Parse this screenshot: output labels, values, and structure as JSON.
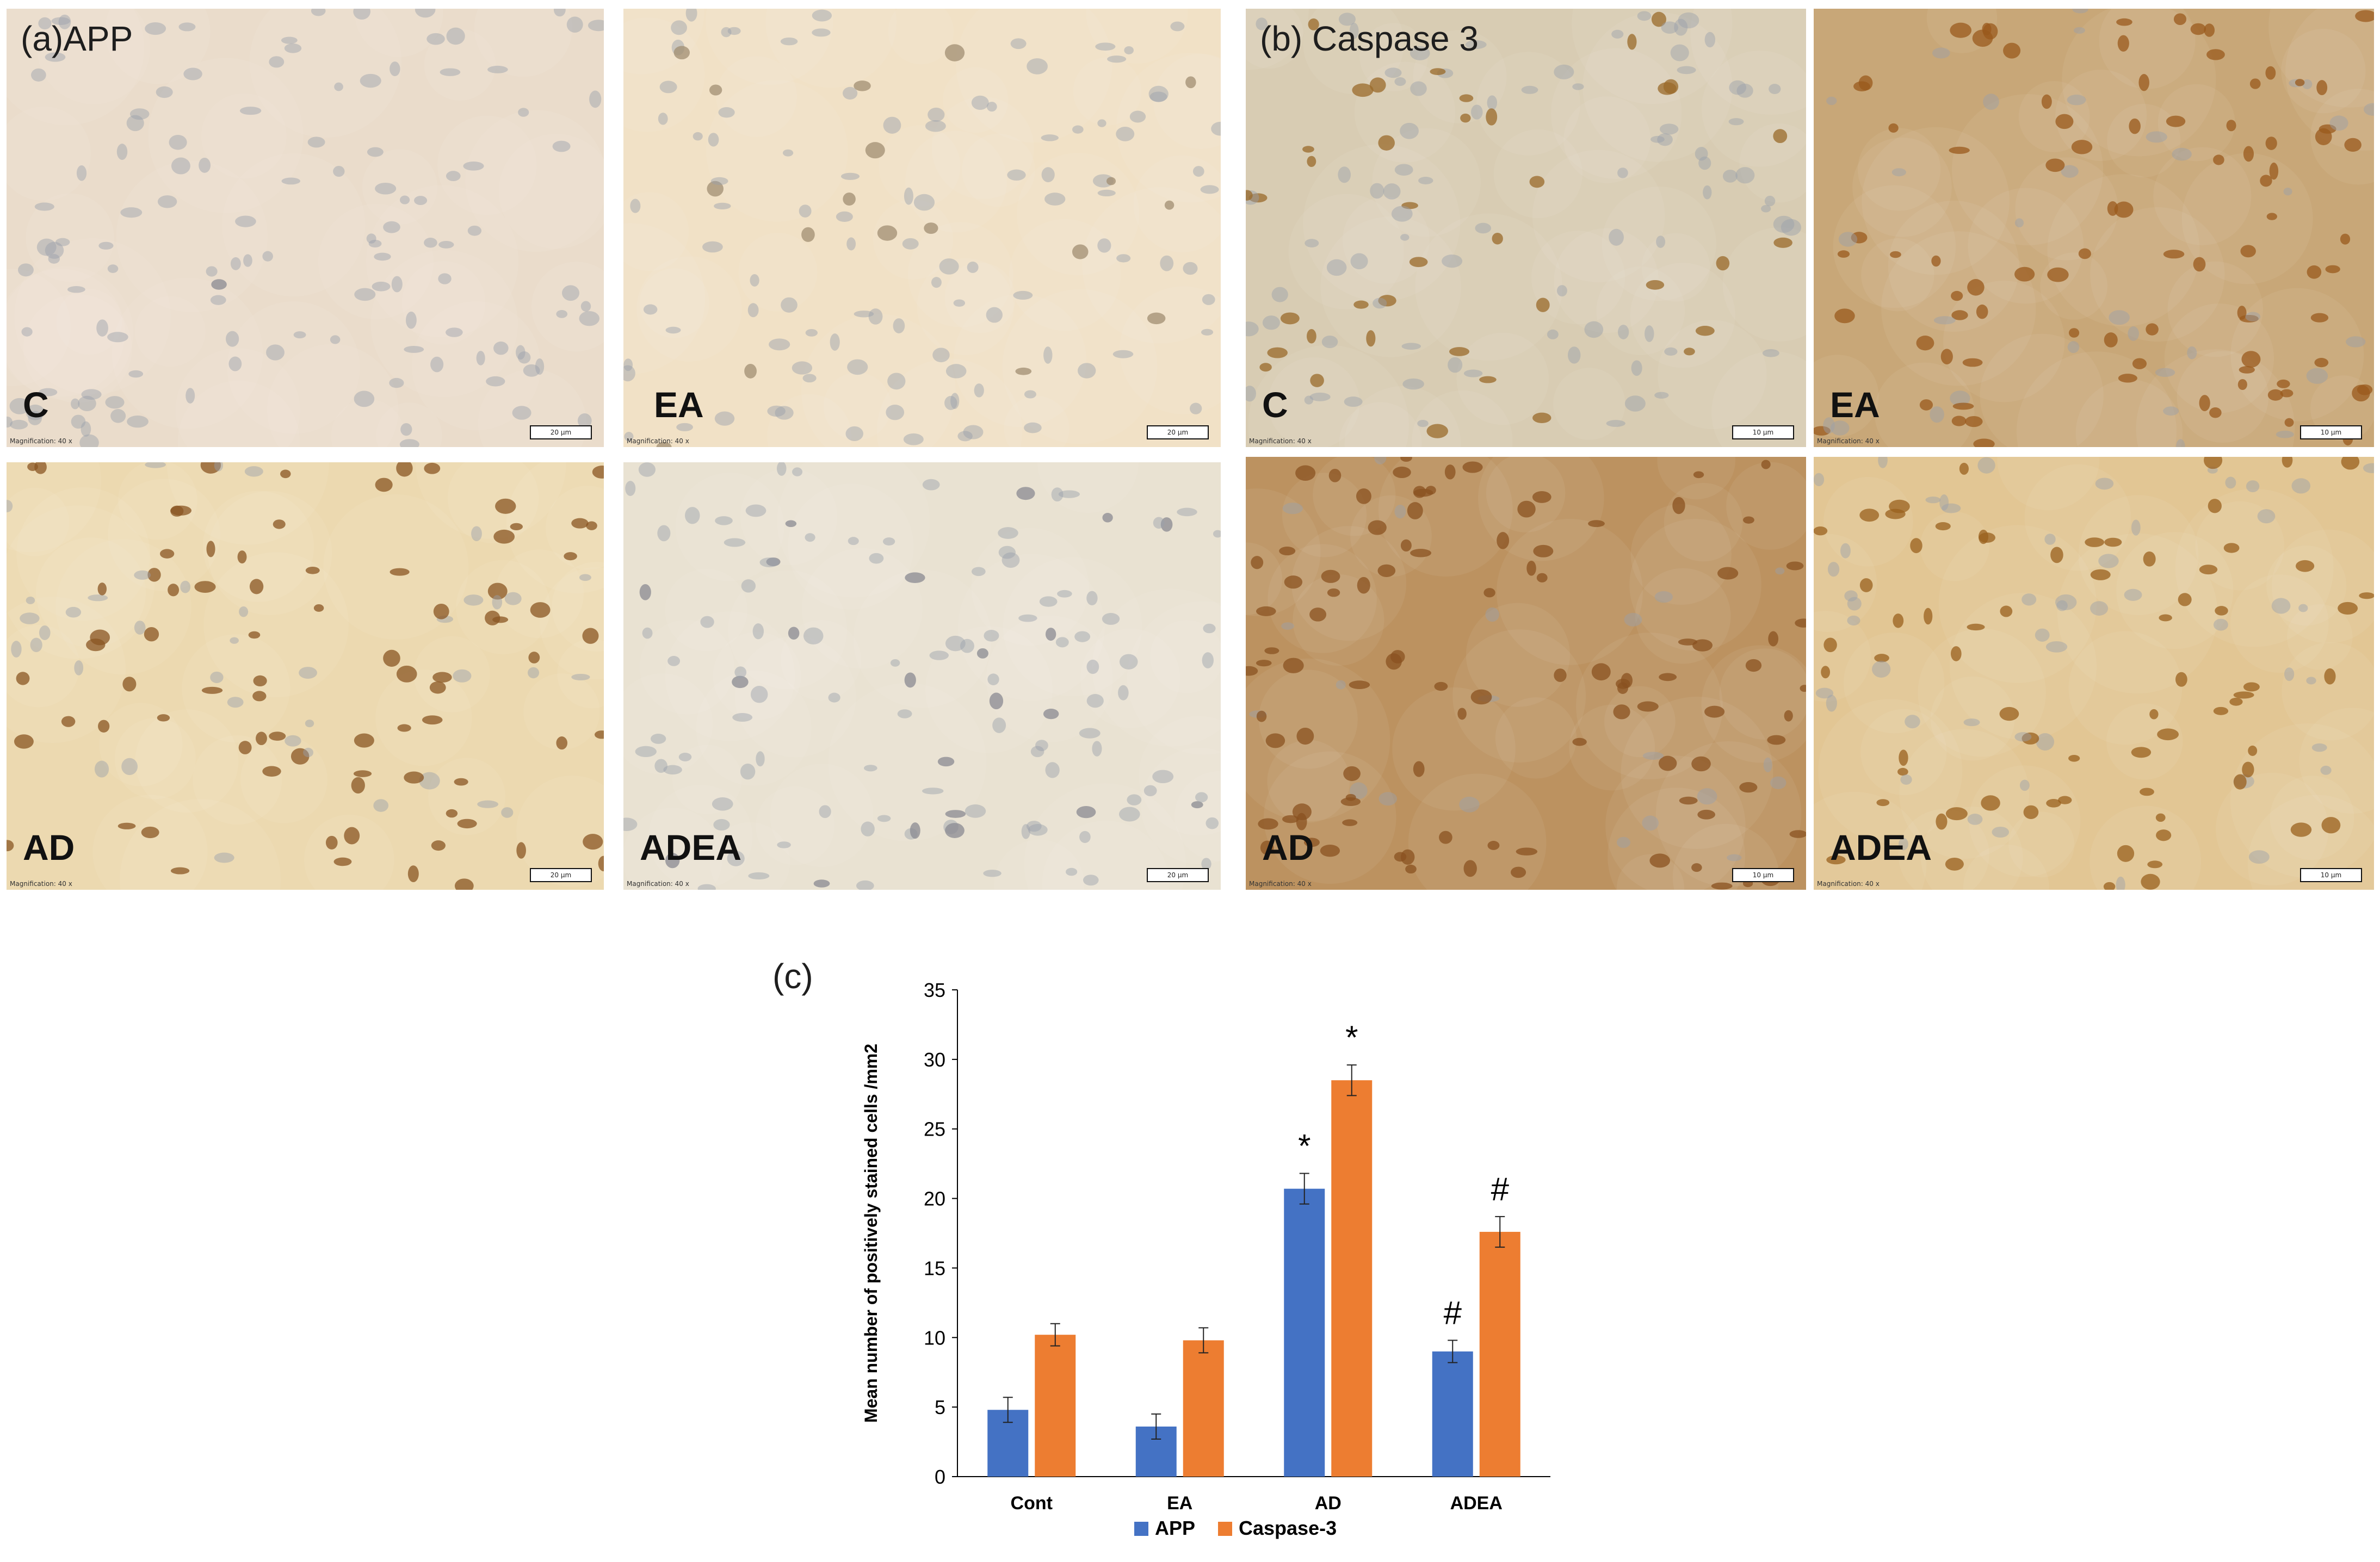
{
  "micrographs": {
    "app": {
      "group_label": "(a)APP",
      "scale_text": "20 μm",
      "magnification_text": "Magnification: 40 x",
      "panels": [
        {
          "label": "C",
          "bg": "#eadccb",
          "stain": "#8a8a92",
          "brown": 0.05
        },
        {
          "label": "EA",
          "bg": "#f1e1c6",
          "stain": "#a08d72",
          "brown": 0.15
        },
        {
          "label": "AD",
          "bg": "#ecd9b0",
          "stain": "#8a5523",
          "brown": 0.6
        },
        {
          "label": "ADEA",
          "bg": "#e9e2d2",
          "stain": "#8a8a92",
          "brown": 0.25
        }
      ]
    },
    "caspase": {
      "group_label": "(b) Caspase 3",
      "scale_text": "10 μm",
      "magnification_text": "Magnification: 40 x",
      "panels": [
        {
          "label": "C",
          "bg": "#d8ccb3",
          "stain": "#9a6a2a",
          "brown": 0.35
        },
        {
          "label": "EA",
          "bg": "#c8a778",
          "stain": "#9a5a1c",
          "brown": 0.6
        },
        {
          "label": "AD",
          "bg": "#bc9260",
          "stain": "#8a5220",
          "brown": 0.85
        },
        {
          "label": "ADEA",
          "bg": "#e2c694",
          "stain": "#99601e",
          "brown": 0.55
        }
      ]
    }
  },
  "chart_label": "(c)",
  "chart_data": {
    "type": "bar",
    "categories": [
      "Cont",
      "EA",
      "AD",
      "ADEA"
    ],
    "series": [
      {
        "name": "APP",
        "color": "#4472c4",
        "values": [
          4.8,
          3.6,
          20.7,
          9.0
        ],
        "errors": [
          0.9,
          0.9,
          1.1,
          0.8
        ],
        "annotations": [
          "",
          "",
          "*",
          "#"
        ]
      },
      {
        "name": "Caspase-3",
        "color": "#ed7d31",
        "values": [
          10.2,
          9.8,
          28.5,
          17.6
        ],
        "errors": [
          0.8,
          0.9,
          1.1,
          1.1
        ],
        "annotations": [
          "",
          "",
          "*",
          "#"
        ]
      }
    ],
    "ylabel": "Mean number of  positively stained  cells /mm2",
    "ylim": [
      0,
      35
    ],
    "yticks": [
      0,
      5,
      10,
      15,
      20,
      25,
      30,
      35
    ],
    "grid": false,
    "legend_position": "bottom"
  }
}
